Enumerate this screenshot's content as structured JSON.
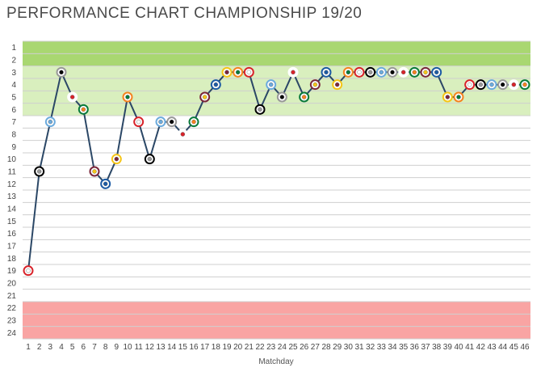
{
  "chart_data": {
    "type": "line",
    "title": "PERFORMANCE CHART CHAMPIONSHIP 19/20",
    "xlabel": "Matchday",
    "ylabel": "",
    "y_inverted": true,
    "xlim": [
      1,
      46
    ],
    "ylim": [
      1,
      24
    ],
    "grid": true,
    "x": [
      1,
      2,
      3,
      4,
      5,
      6,
      7,
      8,
      9,
      10,
      11,
      12,
      13,
      14,
      15,
      16,
      17,
      18,
      19,
      20,
      21,
      22,
      23,
      24,
      25,
      26,
      27,
      28,
      29,
      30,
      31,
      32,
      33,
      34,
      35,
      36,
      37,
      38,
      39,
      40,
      41,
      42,
      43,
      44,
      45,
      46
    ],
    "x_tick_labels": [
      "1",
      "2",
      "3",
      "4",
      "5",
      "6",
      "7",
      "8",
      "9",
      "10",
      "11",
      "12",
      "13",
      "14",
      "15",
      "16",
      "17",
      "18",
      "19",
      "20",
      "21",
      "22",
      "23",
      "24",
      "25",
      "26",
      "27",
      "28",
      "29",
      "30",
      "31",
      "32",
      "33",
      "34",
      "35",
      "36",
      "37",
      "38",
      "39",
      "40",
      "41",
      "42",
      "43",
      "44",
      "45",
      "46"
    ],
    "y_tick_labels": [
      "1",
      "2",
      "3",
      "4",
      "5",
      "6",
      "7",
      "8",
      "9",
      "10",
      "11",
      "12",
      "13",
      "14",
      "15",
      "16",
      "17",
      "18",
      "19",
      "20",
      "21",
      "22",
      "23",
      "24"
    ],
    "series": [
      {
        "values": [
          19,
          11,
          7,
          3,
          5,
          6,
          11,
          12,
          10,
          5,
          7,
          10,
          7,
          7,
          8,
          7,
          5,
          4,
          3,
          3,
          3,
          6,
          4,
          5,
          3,
          5,
          4,
          3,
          4,
          3,
          3,
          3,
          3,
          3,
          3,
          3,
          3,
          3,
          5,
          5,
          4,
          4,
          4,
          4,
          4,
          4
        ]
      }
    ],
    "zones": [
      {
        "from": 1,
        "to": 2,
        "color": "#a9d771"
      },
      {
        "from": 3,
        "to": 6,
        "color": "#d9efbe"
      },
      {
        "from": 22,
        "to": 24,
        "color": "#f9a4a3"
      }
    ],
    "colors": {
      "line": "#2b4766",
      "grid": "#cfcfcf",
      "background": "#ffffff",
      "marker_palette": [
        "#d8232a",
        "#1d5ba4",
        "#ffffff",
        "#000000",
        "#f5c518",
        "#0a7a3b",
        "#6cabdd",
        "#f58220",
        "#7a263a",
        "#999999"
      ]
    }
  }
}
